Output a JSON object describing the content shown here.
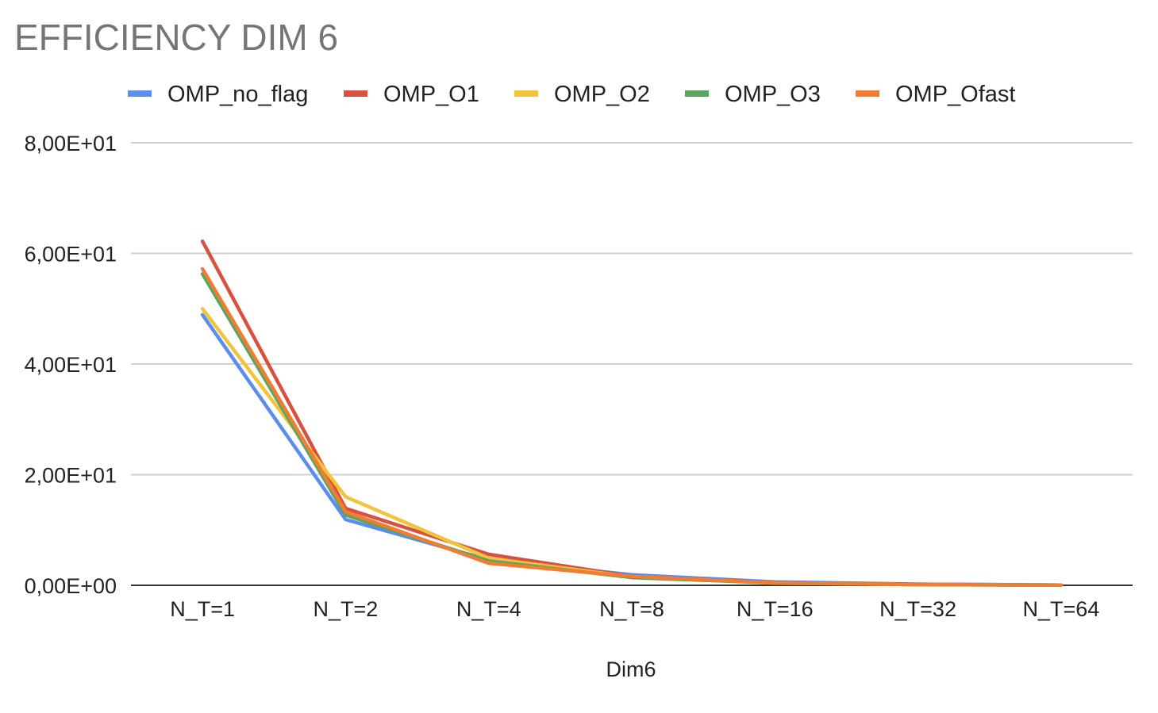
{
  "chart_data": {
    "type": "line",
    "title": "EFFICIENCY  DIM 6",
    "xlabel": "Dim6",
    "ylabel": "",
    "categories": [
      "N_T=1",
      "N_T=2",
      "N_T=4",
      "N_T=8",
      "N_T=16",
      "N_T=32",
      "N_T=64"
    ],
    "ylim": [
      0,
      80
    ],
    "yticks": [
      0,
      20,
      40,
      60,
      80
    ],
    "ytick_labels": [
      "0,00E+00",
      "2,00E+01",
      "4,00E+01",
      "6,00E+01",
      "8,00E+01"
    ],
    "grid": true,
    "legend_position": "top",
    "series": [
      {
        "name": "OMP_no_flag",
        "color": "#5b8def",
        "values": [
          48.9,
          11.9,
          4.6,
          1.9,
          0.6,
          0.2,
          0.05
        ]
      },
      {
        "name": "OMP_O1",
        "color": "#d9503f",
        "values": [
          62.2,
          13.9,
          5.6,
          1.6,
          0.5,
          0.2,
          0.05
        ]
      },
      {
        "name": "OMP_O2",
        "color": "#f2c43c",
        "values": [
          50.0,
          16.0,
          4.9,
          1.5,
          0.4,
          0.15,
          0.04
        ]
      },
      {
        "name": "OMP_O3",
        "color": "#5aa65f",
        "values": [
          56.3,
          12.7,
          4.4,
          1.4,
          0.45,
          0.15,
          0.04
        ]
      },
      {
        "name": "OMP_Ofast",
        "color": "#ef7d33",
        "values": [
          57.2,
          13.3,
          4.0,
          1.6,
          0.45,
          0.15,
          0.04
        ]
      }
    ]
  }
}
